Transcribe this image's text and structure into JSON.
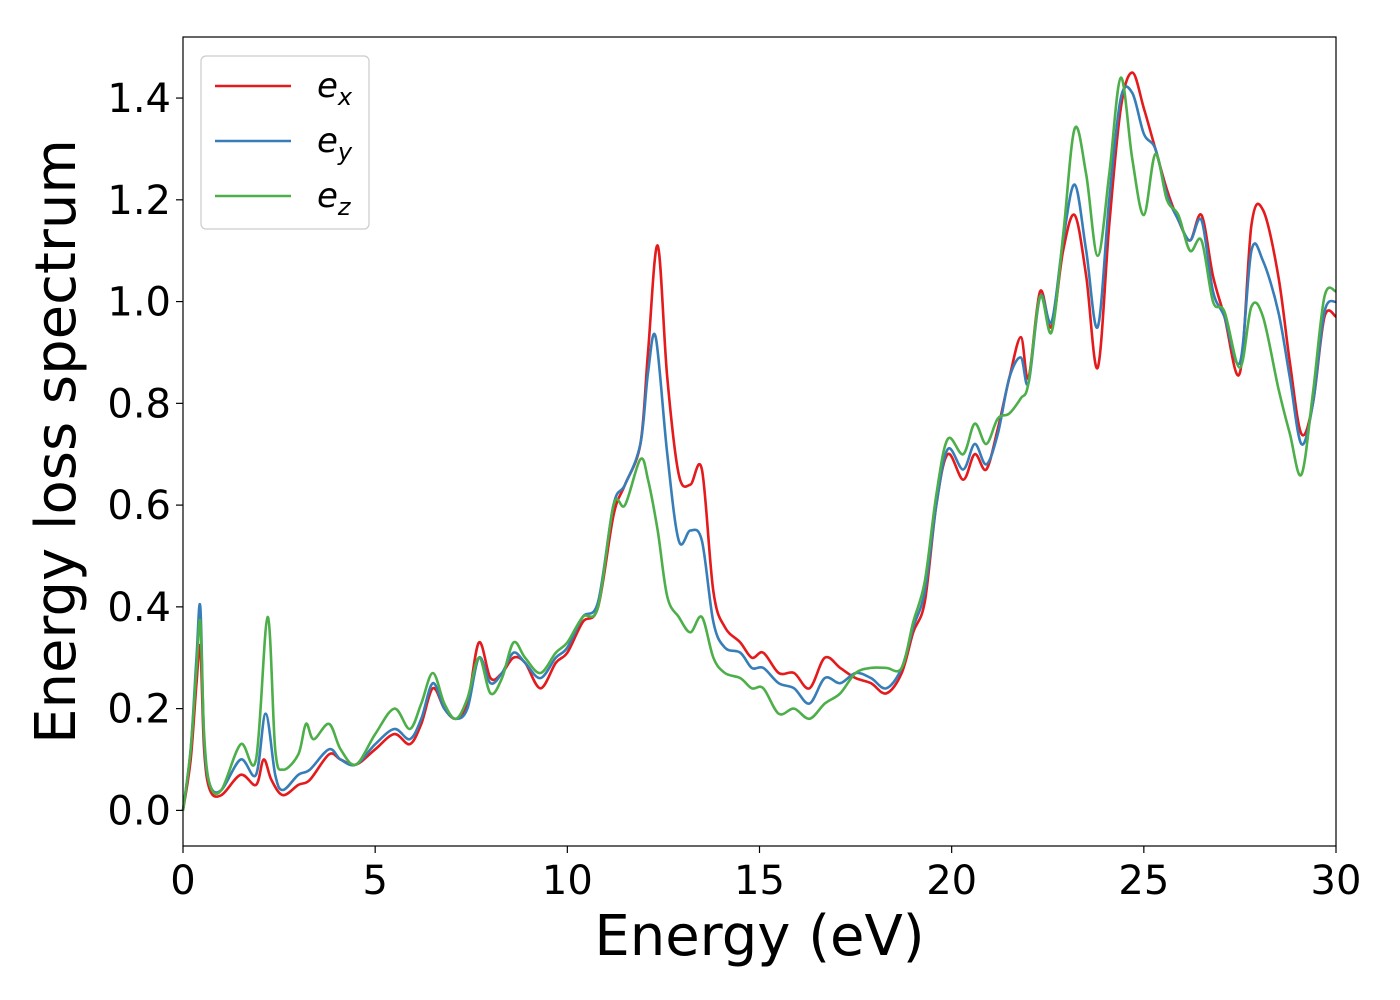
{
  "chart_data": {
    "type": "line",
    "xlabel": "Energy (eV)",
    "ylabel": "Energy loss spectrum",
    "xlim": [
      0,
      30
    ],
    "ylim": [
      -0.07,
      1.52
    ],
    "xticks": [
      0,
      5,
      10,
      15,
      20,
      25,
      30
    ],
    "xtick_labels": [
      "0",
      "5",
      "10",
      "15",
      "20",
      "25",
      "30"
    ],
    "yticks": [
      0.0,
      0.2,
      0.4,
      0.6,
      0.8,
      1.0,
      1.2,
      1.4
    ],
    "ytick_labels": [
      "0.0",
      "0.2",
      "0.4",
      "0.6",
      "0.8",
      "1.0",
      "1.2",
      "1.4"
    ],
    "grid": false,
    "legend_position": "top-left",
    "series": [
      {
        "name": "e_x",
        "legend_base": "e",
        "legend_sub": "x",
        "color": "#e41a1c",
        "points": [
          [
            0,
            0.0
          ],
          [
            0.2,
            0.1
          ],
          [
            0.35,
            0.25
          ],
          [
            0.45,
            0.32
          ],
          [
            0.55,
            0.12
          ],
          [
            0.7,
            0.04
          ],
          [
            1.0,
            0.03
          ],
          [
            1.5,
            0.07
          ],
          [
            1.9,
            0.05
          ],
          [
            2.1,
            0.1
          ],
          [
            2.3,
            0.06
          ],
          [
            2.6,
            0.03
          ],
          [
            3.0,
            0.05
          ],
          [
            3.3,
            0.06
          ],
          [
            3.8,
            0.11
          ],
          [
            4.1,
            0.1
          ],
          [
            4.5,
            0.09
          ],
          [
            5.0,
            0.12
          ],
          [
            5.5,
            0.15
          ],
          [
            5.9,
            0.13
          ],
          [
            6.2,
            0.17
          ],
          [
            6.5,
            0.24
          ],
          [
            6.8,
            0.2
          ],
          [
            7.1,
            0.18
          ],
          [
            7.4,
            0.21
          ],
          [
            7.7,
            0.33
          ],
          [
            8.0,
            0.26
          ],
          [
            8.3,
            0.27
          ],
          [
            8.6,
            0.3
          ],
          [
            8.9,
            0.29
          ],
          [
            9.3,
            0.24
          ],
          [
            9.7,
            0.29
          ],
          [
            10.0,
            0.31
          ],
          [
            10.4,
            0.37
          ],
          [
            10.8,
            0.4
          ],
          [
            11.2,
            0.58
          ],
          [
            11.5,
            0.64
          ],
          [
            11.9,
            0.72
          ],
          [
            12.1,
            0.9
          ],
          [
            12.35,
            1.11
          ],
          [
            12.6,
            0.85
          ],
          [
            12.9,
            0.66
          ],
          [
            13.2,
            0.64
          ],
          [
            13.5,
            0.67
          ],
          [
            13.8,
            0.43
          ],
          [
            14.1,
            0.36
          ],
          [
            14.5,
            0.33
          ],
          [
            14.8,
            0.3
          ],
          [
            15.1,
            0.31
          ],
          [
            15.5,
            0.27
          ],
          [
            15.9,
            0.27
          ],
          [
            16.3,
            0.24
          ],
          [
            16.7,
            0.3
          ],
          [
            17.1,
            0.28
          ],
          [
            17.5,
            0.26
          ],
          [
            17.9,
            0.25
          ],
          [
            18.3,
            0.23
          ],
          [
            18.7,
            0.27
          ],
          [
            19.0,
            0.35
          ],
          [
            19.3,
            0.41
          ],
          [
            19.6,
            0.6
          ],
          [
            19.9,
            0.7
          ],
          [
            20.3,
            0.65
          ],
          [
            20.6,
            0.7
          ],
          [
            20.9,
            0.67
          ],
          [
            21.2,
            0.75
          ],
          [
            21.5,
            0.85
          ],
          [
            21.8,
            0.93
          ],
          [
            22.0,
            0.85
          ],
          [
            22.3,
            1.02
          ],
          [
            22.6,
            0.95
          ],
          [
            22.9,
            1.1
          ],
          [
            23.2,
            1.17
          ],
          [
            23.5,
            1.05
          ],
          [
            23.8,
            0.87
          ],
          [
            24.1,
            1.15
          ],
          [
            24.4,
            1.38
          ],
          [
            24.7,
            1.45
          ],
          [
            25.0,
            1.38
          ],
          [
            25.3,
            1.3
          ],
          [
            25.6,
            1.22
          ],
          [
            25.9,
            1.16
          ],
          [
            26.2,
            1.12
          ],
          [
            26.5,
            1.17
          ],
          [
            26.8,
            1.05
          ],
          [
            27.1,
            0.97
          ],
          [
            27.5,
            0.86
          ],
          [
            27.8,
            1.15
          ],
          [
            28.1,
            1.18
          ],
          [
            28.5,
            1.05
          ],
          [
            28.8,
            0.88
          ],
          [
            29.1,
            0.74
          ],
          [
            29.4,
            0.8
          ],
          [
            29.7,
            0.97
          ],
          [
            30.0,
            0.97
          ]
        ]
      },
      {
        "name": "e_y",
        "legend_base": "e",
        "legend_sub": "y",
        "color": "#377eb8",
        "points": [
          [
            0,
            0.0
          ],
          [
            0.2,
            0.12
          ],
          [
            0.35,
            0.3
          ],
          [
            0.45,
            0.4
          ],
          [
            0.55,
            0.14
          ],
          [
            0.7,
            0.05
          ],
          [
            1.0,
            0.04
          ],
          [
            1.5,
            0.1
          ],
          [
            1.9,
            0.07
          ],
          [
            2.15,
            0.19
          ],
          [
            2.4,
            0.07
          ],
          [
            2.6,
            0.04
          ],
          [
            3.0,
            0.07
          ],
          [
            3.3,
            0.08
          ],
          [
            3.8,
            0.12
          ],
          [
            4.1,
            0.1
          ],
          [
            4.5,
            0.09
          ],
          [
            5.0,
            0.13
          ],
          [
            5.5,
            0.16
          ],
          [
            5.9,
            0.14
          ],
          [
            6.2,
            0.18
          ],
          [
            6.5,
            0.25
          ],
          [
            6.8,
            0.2
          ],
          [
            7.1,
            0.18
          ],
          [
            7.4,
            0.2
          ],
          [
            7.7,
            0.3
          ],
          [
            8.0,
            0.25
          ],
          [
            8.3,
            0.27
          ],
          [
            8.6,
            0.31
          ],
          [
            8.9,
            0.29
          ],
          [
            9.3,
            0.26
          ],
          [
            9.7,
            0.3
          ],
          [
            10.0,
            0.32
          ],
          [
            10.4,
            0.38
          ],
          [
            10.8,
            0.41
          ],
          [
            11.2,
            0.6
          ],
          [
            11.5,
            0.64
          ],
          [
            11.9,
            0.72
          ],
          [
            12.1,
            0.86
          ],
          [
            12.3,
            0.93
          ],
          [
            12.6,
            0.7
          ],
          [
            12.9,
            0.53
          ],
          [
            13.2,
            0.55
          ],
          [
            13.5,
            0.53
          ],
          [
            13.8,
            0.37
          ],
          [
            14.1,
            0.32
          ],
          [
            14.5,
            0.31
          ],
          [
            14.8,
            0.28
          ],
          [
            15.1,
            0.28
          ],
          [
            15.5,
            0.25
          ],
          [
            15.9,
            0.24
          ],
          [
            16.3,
            0.21
          ],
          [
            16.7,
            0.26
          ],
          [
            17.1,
            0.25
          ],
          [
            17.5,
            0.27
          ],
          [
            17.9,
            0.26
          ],
          [
            18.3,
            0.24
          ],
          [
            18.7,
            0.28
          ],
          [
            19.0,
            0.36
          ],
          [
            19.3,
            0.43
          ],
          [
            19.6,
            0.6
          ],
          [
            19.9,
            0.71
          ],
          [
            20.3,
            0.67
          ],
          [
            20.6,
            0.72
          ],
          [
            20.9,
            0.68
          ],
          [
            21.2,
            0.74
          ],
          [
            21.5,
            0.85
          ],
          [
            21.8,
            0.89
          ],
          [
            22.0,
            0.84
          ],
          [
            22.3,
            1.01
          ],
          [
            22.6,
            0.96
          ],
          [
            22.9,
            1.12
          ],
          [
            23.2,
            1.23
          ],
          [
            23.5,
            1.1
          ],
          [
            23.8,
            0.95
          ],
          [
            24.1,
            1.2
          ],
          [
            24.4,
            1.4
          ],
          [
            24.7,
            1.41
          ],
          [
            25.0,
            1.33
          ],
          [
            25.3,
            1.3
          ],
          [
            25.6,
            1.21
          ],
          [
            25.9,
            1.16
          ],
          [
            26.2,
            1.12
          ],
          [
            26.5,
            1.16
          ],
          [
            26.8,
            1.02
          ],
          [
            27.1,
            0.97
          ],
          [
            27.5,
            0.88
          ],
          [
            27.8,
            1.1
          ],
          [
            28.1,
            1.08
          ],
          [
            28.5,
            0.98
          ],
          [
            28.8,
            0.85
          ],
          [
            29.1,
            0.72
          ],
          [
            29.4,
            0.8
          ],
          [
            29.7,
            0.98
          ],
          [
            30.0,
            1.0
          ]
        ]
      },
      {
        "name": "e_z",
        "legend_base": "e",
        "legend_sub": "z",
        "color": "#4daf4a",
        "points": [
          [
            0,
            0.0
          ],
          [
            0.2,
            0.12
          ],
          [
            0.35,
            0.28
          ],
          [
            0.45,
            0.37
          ],
          [
            0.55,
            0.15
          ],
          [
            0.7,
            0.05
          ],
          [
            1.0,
            0.04
          ],
          [
            1.5,
            0.13
          ],
          [
            1.9,
            0.1
          ],
          [
            2.2,
            0.38
          ],
          [
            2.4,
            0.12
          ],
          [
            2.6,
            0.08
          ],
          [
            3.0,
            0.11
          ],
          [
            3.2,
            0.17
          ],
          [
            3.4,
            0.14
          ],
          [
            3.8,
            0.17
          ],
          [
            4.1,
            0.12
          ],
          [
            4.5,
            0.09
          ],
          [
            5.0,
            0.15
          ],
          [
            5.5,
            0.2
          ],
          [
            5.9,
            0.16
          ],
          [
            6.2,
            0.21
          ],
          [
            6.5,
            0.27
          ],
          [
            6.8,
            0.21
          ],
          [
            7.1,
            0.18
          ],
          [
            7.4,
            0.22
          ],
          [
            7.7,
            0.3
          ],
          [
            8.0,
            0.23
          ],
          [
            8.3,
            0.26
          ],
          [
            8.6,
            0.33
          ],
          [
            8.9,
            0.3
          ],
          [
            9.3,
            0.27
          ],
          [
            9.7,
            0.31
          ],
          [
            10.0,
            0.33
          ],
          [
            10.4,
            0.38
          ],
          [
            10.8,
            0.4
          ],
          [
            11.2,
            0.6
          ],
          [
            11.5,
            0.6
          ],
          [
            11.9,
            0.69
          ],
          [
            12.1,
            0.65
          ],
          [
            12.35,
            0.55
          ],
          [
            12.6,
            0.42
          ],
          [
            12.9,
            0.38
          ],
          [
            13.2,
            0.35
          ],
          [
            13.5,
            0.38
          ],
          [
            13.8,
            0.3
          ],
          [
            14.1,
            0.27
          ],
          [
            14.5,
            0.26
          ],
          [
            14.8,
            0.24
          ],
          [
            15.1,
            0.24
          ],
          [
            15.5,
            0.19
          ],
          [
            15.9,
            0.2
          ],
          [
            16.3,
            0.18
          ],
          [
            16.7,
            0.21
          ],
          [
            17.1,
            0.23
          ],
          [
            17.5,
            0.27
          ],
          [
            17.9,
            0.28
          ],
          [
            18.3,
            0.28
          ],
          [
            18.7,
            0.28
          ],
          [
            19.0,
            0.37
          ],
          [
            19.3,
            0.45
          ],
          [
            19.6,
            0.62
          ],
          [
            19.9,
            0.73
          ],
          [
            20.3,
            0.7
          ],
          [
            20.6,
            0.76
          ],
          [
            20.9,
            0.72
          ],
          [
            21.2,
            0.77
          ],
          [
            21.5,
            0.78
          ],
          [
            21.8,
            0.81
          ],
          [
            22.0,
            0.84
          ],
          [
            22.3,
            1.01
          ],
          [
            22.6,
            0.94
          ],
          [
            22.9,
            1.13
          ],
          [
            23.2,
            1.34
          ],
          [
            23.5,
            1.25
          ],
          [
            23.8,
            1.09
          ],
          [
            24.1,
            1.25
          ],
          [
            24.4,
            1.44
          ],
          [
            24.7,
            1.28
          ],
          [
            25.0,
            1.17
          ],
          [
            25.3,
            1.29
          ],
          [
            25.6,
            1.2
          ],
          [
            25.9,
            1.17
          ],
          [
            26.2,
            1.1
          ],
          [
            26.5,
            1.12
          ],
          [
            26.8,
            1.0
          ],
          [
            27.1,
            0.98
          ],
          [
            27.5,
            0.87
          ],
          [
            27.8,
            0.99
          ],
          [
            28.1,
            0.97
          ],
          [
            28.5,
            0.83
          ],
          [
            28.8,
            0.74
          ],
          [
            29.1,
            0.66
          ],
          [
            29.4,
            0.82
          ],
          [
            29.7,
            1.01
          ],
          [
            30.0,
            1.02
          ]
        ]
      }
    ]
  }
}
